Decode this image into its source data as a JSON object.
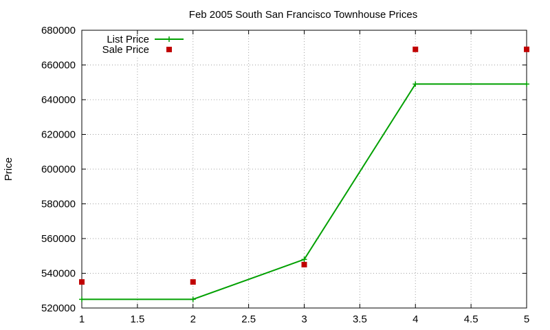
{
  "chart_data": {
    "type": "line",
    "title": "Feb 2005 South San Francisco Townhouse Prices",
    "ylabel": "Price",
    "xlabel": "",
    "xlim": [
      1,
      5
    ],
    "ylim": [
      520000,
      680000
    ],
    "x_ticks": [
      1,
      1.5,
      2,
      2.5,
      3,
      3.5,
      4,
      4.5,
      5
    ],
    "x_tick_labels": [
      "1",
      "1.5",
      "2",
      "2.5",
      "3",
      "3.5",
      "4",
      "4.5",
      "5"
    ],
    "y_ticks": [
      520000,
      540000,
      560000,
      580000,
      600000,
      620000,
      640000,
      660000,
      680000
    ],
    "y_tick_labels": [
      "520000",
      "540000",
      "560000",
      "580000",
      "600000",
      "620000",
      "640000",
      "660000",
      "680000"
    ],
    "grid": true,
    "legend_position": "top-left",
    "series": [
      {
        "name": "List Price",
        "style": "linespoints",
        "marker": "plus",
        "color": "#00a000",
        "x": [
          1,
          2,
          3,
          4,
          5
        ],
        "y": [
          525000,
          525000,
          548000,
          649000,
          649000
        ]
      },
      {
        "name": "Sale Price",
        "style": "points",
        "marker": "square",
        "color": "#c00000",
        "x": [
          1,
          2,
          3,
          4,
          5
        ],
        "y": [
          535000,
          535000,
          545000,
          669000,
          669000
        ]
      }
    ]
  }
}
